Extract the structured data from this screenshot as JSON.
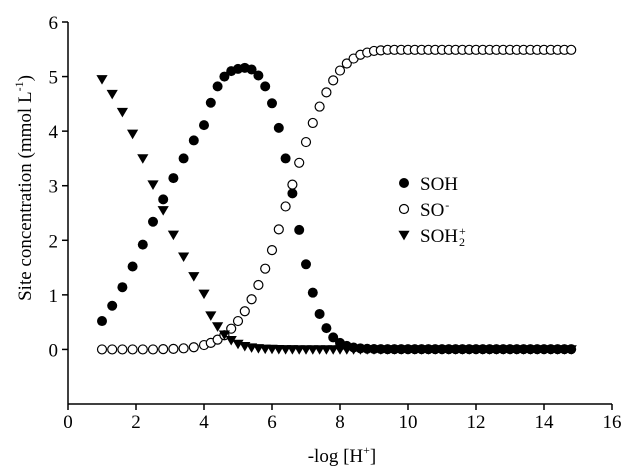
{
  "chart_data": {
    "type": "scatter",
    "xlabel": {
      "main": "-log [H",
      "sup": "+",
      "end": "]"
    },
    "ylabel": {
      "main": "Site concentration (mmol L",
      "sup": "-1",
      "end": ")"
    },
    "xlim": [
      0,
      16
    ],
    "ylim": [
      -1,
      6
    ],
    "xticks": [
      "0",
      "2",
      "4",
      "6",
      "8",
      "10",
      "12",
      "14",
      "16"
    ],
    "yticks": [
      "0",
      "1",
      "2",
      "3",
      "4",
      "5",
      "6"
    ],
    "grid": false,
    "legend_position": "right-center",
    "x": [
      1.0,
      1.3,
      1.6,
      1.9,
      2.2,
      2.5,
      2.8,
      3.1,
      3.4,
      3.7,
      4.0,
      4.2,
      4.4,
      4.6,
      4.8,
      5.0,
      5.2,
      5.4,
      5.6,
      5.8,
      6.0,
      6.2,
      6.4,
      6.6,
      6.8,
      7.0,
      7.2,
      7.4,
      7.6,
      7.8,
      8.0,
      8.2,
      8.4,
      8.6,
      8.8,
      9.0,
      9.2,
      9.4,
      9.6,
      9.8,
      10.0,
      10.2,
      10.4,
      10.6,
      10.8,
      11.0,
      11.2,
      11.4,
      11.6,
      11.8,
      12.0,
      12.2,
      12.4,
      12.6,
      12.8,
      13.0,
      13.2,
      13.4,
      13.6,
      13.8,
      14.0,
      14.2,
      14.4,
      14.6,
      14.8
    ],
    "series": [
      {
        "name": "SOH",
        "sup": "",
        "sub": "",
        "marker": "filled-circle",
        "values": [
          0.52,
          0.8,
          1.14,
          1.52,
          1.92,
          2.34,
          2.75,
          3.14,
          3.5,
          3.83,
          4.11,
          4.52,
          4.82,
          5.0,
          5.1,
          5.14,
          5.16,
          5.13,
          5.02,
          4.82,
          4.51,
          4.06,
          3.5,
          2.86,
          2.19,
          1.56,
          1.04,
          0.65,
          0.39,
          0.22,
          0.12,
          0.065,
          0.035,
          0.02,
          0.012,
          0.008,
          0.006,
          0.005,
          0.005,
          0.005,
          0.005,
          0.005,
          0.005,
          0.005,
          0.005,
          0.005,
          0.005,
          0.005,
          0.005,
          0.005,
          0.005,
          0.005,
          0.005,
          0.005,
          0.005,
          0.005,
          0.005,
          0.005,
          0.005,
          0.005,
          0.005,
          0.005,
          0.005,
          0.005,
          0.005
        ]
      },
      {
        "name": "SO",
        "sup": "-",
        "sub": "",
        "marker": "open-circle",
        "values": [
          0.0,
          0.0,
          0.0,
          0.0,
          0.0,
          0.0,
          0.005,
          0.01,
          0.02,
          0.04,
          0.08,
          0.12,
          0.18,
          0.26,
          0.38,
          0.52,
          0.7,
          0.92,
          1.18,
          1.48,
          1.82,
          2.2,
          2.62,
          3.02,
          3.42,
          3.8,
          4.15,
          4.45,
          4.71,
          4.93,
          5.11,
          5.24,
          5.33,
          5.4,
          5.44,
          5.47,
          5.48,
          5.49,
          5.49,
          5.49,
          5.49,
          5.49,
          5.49,
          5.49,
          5.49,
          5.49,
          5.49,
          5.49,
          5.49,
          5.49,
          5.49,
          5.49,
          5.49,
          5.49,
          5.49,
          5.49,
          5.49,
          5.49,
          5.49,
          5.49,
          5.49,
          5.49,
          5.49,
          5.49,
          5.49
        ]
      },
      {
        "name": "SOH",
        "sup": "+",
        "sub": "2",
        "marker": "filled-triangle-down",
        "values": [
          4.95,
          4.68,
          4.35,
          3.95,
          3.5,
          3.02,
          2.55,
          2.1,
          1.7,
          1.34,
          1.02,
          0.62,
          0.42,
          0.27,
          0.17,
          0.1,
          0.06,
          0.035,
          0.02,
          0.012,
          0.008,
          0.005,
          0.003,
          0.002,
          0.0,
          0.0,
          0.0,
          0.0,
          0.0,
          0.0,
          0.0,
          0.0,
          0.0,
          0.0,
          0.0,
          0.0,
          0.0,
          0.0,
          0.0,
          0.0,
          0.0,
          0.0,
          0.0,
          0.0,
          0.0,
          0.0,
          0.0,
          0.0,
          0.0,
          0.0,
          0.0,
          0.0,
          0.0,
          0.0,
          0.0,
          0.0,
          0.0,
          0.0,
          0.0,
          0.0,
          0.0,
          0.0,
          0.0,
          0.0,
          0.0
        ]
      }
    ]
  }
}
